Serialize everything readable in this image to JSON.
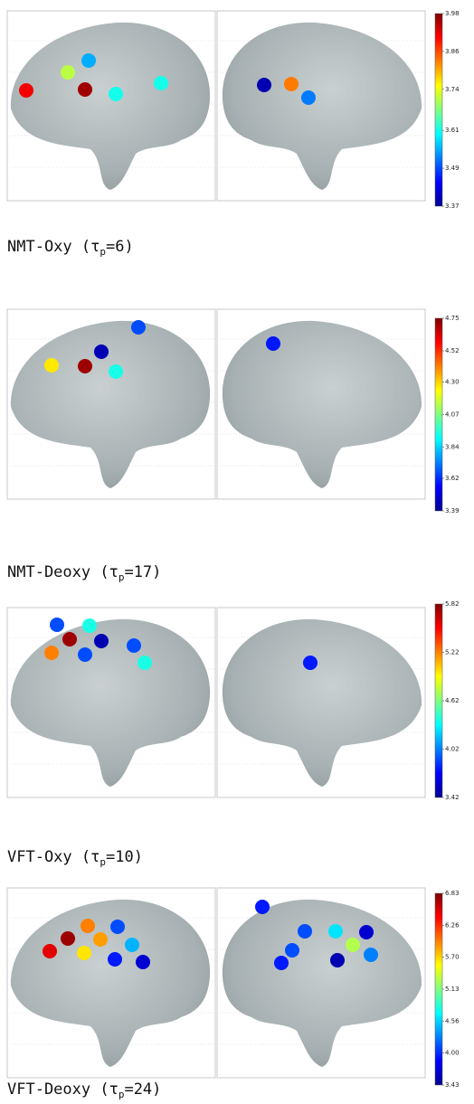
{
  "panels": [
    {
      "caption": {
        "text": "NMT-Oxy (τ",
        "subscript": "p",
        "tail": "=6)"
      },
      "colorbar": {
        "lim": [
          3.37,
          3.98
        ],
        "ticks": [
          3.98,
          3.86,
          3.74,
          3.61,
          3.49,
          3.37
        ]
      },
      "dots": {
        "left": [
          3.91,
          3.71,
          3.55,
          3.96,
          3.61,
          3.61
        ],
        "right": [
          3.4,
          3.83,
          3.52
        ]
      }
    },
    {
      "caption": {
        "text": "NMT-Deoxy (τ",
        "subscript": "p",
        "tail": "=17)"
      },
      "colorbar": {
        "lim": [
          3.39,
          4.75
        ],
        "ticks": [
          4.75,
          4.52,
          {
            "value": 4.3,
            "label": "4.30"
          },
          4.07,
          3.84,
          3.62,
          3.39
        ]
      },
      "dots": {
        "left": [
          3.66,
          3.46,
          4.27,
          4.71,
          3.93
        ],
        "right": [
          3.59
        ]
      }
    },
    {
      "caption": {
        "text": "VFT-Oxy (τ",
        "subscript": "p",
        "tail": "=10)"
      },
      "colorbar": {
        "lim": [
          3.42,
          5.82
        ],
        "ticks": [
          5.82,
          5.22,
          4.62,
          4.02,
          3.42
        ]
      },
      "dots": {
        "left": [
          3.9,
          4.38,
          5.75,
          3.54,
          5.22,
          3.9,
          3.9,
          4.38
        ],
        "right": [
          3.78
        ]
      }
    },
    {
      "caption": {
        "text": "VFT-Deoxy (τ",
        "subscript": "p",
        "tail": "=24)"
      },
      "colorbar": {
        "lim": [
          3.43,
          6.83
        ],
        "ticks": [
          6.83,
          6.26,
          {
            "value": 5.7,
            "label": "5.70"
          },
          5.13,
          4.56,
          {
            "value": 4.0,
            "label": "4.00"
          },
          3.43
        ]
      },
      "dots": {
        "left": [
          5.98,
          4.11,
          6.73,
          5.88,
          4.45,
          6.49,
          5.64,
          3.94,
          3.7
        ],
        "right": [
          3.94,
          4.11,
          4.62,
          3.7,
          4.11,
          5.3,
          3.6,
          3.94,
          4.28
        ]
      }
    }
  ]
}
